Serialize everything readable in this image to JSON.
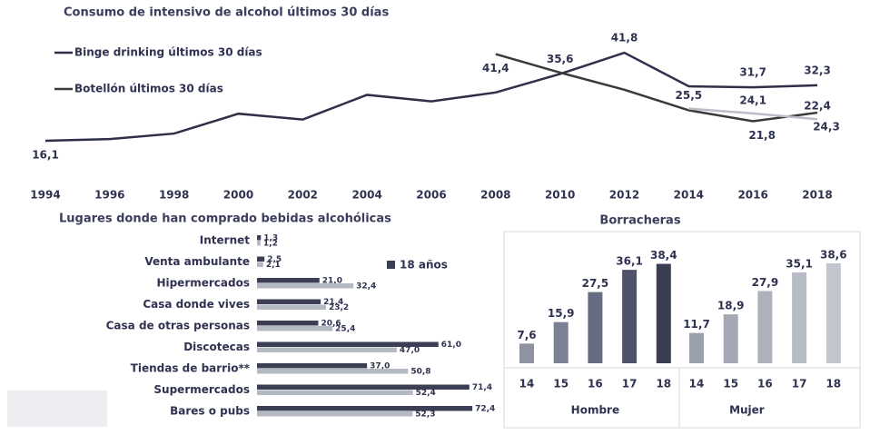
{
  "chart_data": [
    {
      "type": "line",
      "title": "Consumo de intensivo de alcohol últimos 30 días",
      "categories": [
        "1994",
        "1996",
        "1998",
        "2000",
        "2002",
        "2004",
        "2006",
        "2008",
        "2010",
        "2012",
        "2014",
        "2016",
        "2018"
      ],
      "ylim": [
        10,
        45
      ],
      "series": [
        {
          "name": "Binge drinking últimos 30 días",
          "color": "#2d3047",
          "values": [
            16.1,
            16.6,
            18.2,
            24.0,
            22.3,
            29.5,
            27.6,
            30.2,
            35.6,
            41.8,
            32.0,
            31.7,
            32.3
          ],
          "value_labels": [
            "16,1",
            null,
            null,
            null,
            null,
            null,
            null,
            null,
            "35,6",
            "41,8",
            null,
            "31,7",
            "32,3"
          ]
        },
        {
          "name": "Botellón últimos 30 días",
          "color": "#3a3a3a",
          "values": [
            null,
            null,
            null,
            null,
            null,
            null,
            null,
            41.4,
            36.0,
            31.0,
            25.0,
            21.8,
            24.3
          ],
          "value_labels": [
            null,
            null,
            null,
            null,
            null,
            null,
            null,
            "41,4",
            null,
            null,
            null,
            "21,8",
            "24,3"
          ]
        },
        {
          "color": "#b9bdc6",
          "values": [
            null,
            null,
            null,
            null,
            null,
            null,
            null,
            null,
            null,
            null,
            25.5,
            24.1,
            22.4
          ],
          "value_labels": [
            null,
            null,
            null,
            null,
            null,
            null,
            null,
            null,
            null,
            null,
            "25,5",
            "24,1",
            "22,4"
          ]
        }
      ]
    },
    {
      "type": "bar",
      "horizontal": true,
      "title": "Lugares donde han comprado bebidas alcohólicas",
      "categories": [
        "Internet",
        "Venta ambulante",
        "Hipermercados",
        "Casa donde vives",
        "Casa de otras personas",
        "Discotecas",
        "Tiendas de barrio**",
        "Supermercados",
        "Bares o pubs"
      ],
      "xlim": [
        0,
        80
      ],
      "series": [
        {
          "name": "18 años",
          "color": "#3b3f55",
          "values": [
            1.3,
            2.5,
            21.0,
            21.4,
            20.6,
            61.0,
            37.0,
            71.4,
            72.4
          ],
          "value_labels": [
            "1,3",
            "2,5",
            "21,0",
            "21,4",
            "20,6",
            "61,0",
            "37,0",
            "71,4",
            "72,4"
          ]
        },
        {
          "color": "#b5b9c2",
          "values": [
            1.2,
            2.1,
            32.4,
            23.2,
            25.4,
            47.0,
            50.8,
            52.4,
            52.3
          ],
          "value_labels": [
            "1,2",
            "2,1",
            "32,4",
            "23,2",
            "25,4",
            "47,0",
            "50,8",
            "52,4",
            "52,3"
          ]
        }
      ]
    },
    {
      "type": "bar",
      "title": "Borracheras",
      "ylim": [
        0,
        40
      ],
      "groups": [
        {
          "name": "Hombre",
          "categories": [
            "14",
            "15",
            "16",
            "17",
            "18"
          ],
          "values": [
            7.6,
            15.9,
            27.5,
            36.1,
            38.4
          ],
          "value_labels": [
            "7,6",
            "15,9",
            "27,5",
            "36,1",
            "38,4"
          ],
          "colors": [
            "#8e93a3",
            "#7b8092",
            "#676c80",
            "#4f546a",
            "#393d52"
          ]
        },
        {
          "name": "Mujer",
          "categories": [
            "14",
            "15",
            "16",
            "17",
            "18"
          ],
          "values": [
            11.7,
            18.9,
            27.9,
            35.1,
            38.6
          ],
          "value_labels": [
            "11,7",
            "18,9",
            "27,9",
            "35,1",
            "38,6"
          ],
          "colors": [
            "#9ba0ad",
            "#a3a8b4",
            "#adb1bc",
            "#b7bbc5",
            "#c2c5ce"
          ]
        }
      ]
    }
  ]
}
